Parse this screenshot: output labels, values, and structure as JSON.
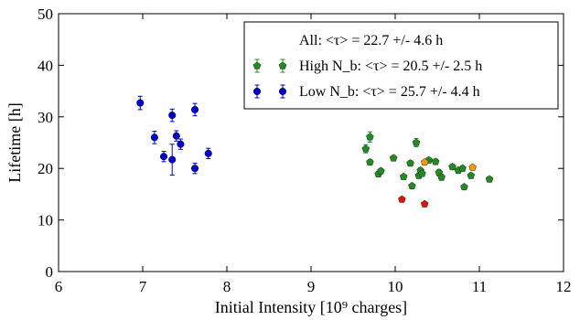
{
  "chart_data": {
    "type": "scatter",
    "xlabel": "Initial Intensity [10⁹ charges]",
    "ylabel": "Lifetime [h]",
    "xlim": [
      6,
      12
    ],
    "ylim": [
      0,
      50
    ],
    "xticks": [
      "6",
      "7",
      "8",
      "9",
      "10",
      "11",
      "12"
    ],
    "yticks": [
      "0",
      "10",
      "20",
      "30",
      "40",
      "50"
    ],
    "grid": false,
    "legend_position": "top-right",
    "legend": [
      {
        "label": "All: <τ> = 22.7 +/- 4.6 h",
        "marker": "none"
      },
      {
        "label": "High N_b: <τ> = 20.5 +/- 2.5 h",
        "color": "#228b22",
        "marker": "pentagon"
      },
      {
        "label": "Low N_b: <τ> = 25.7 +/- 4.4 h",
        "color": "#0000cc",
        "marker": "circle"
      }
    ],
    "series": [
      {
        "name": "High N_b",
        "color": "#228b22",
        "marker": "pentagon",
        "points": [
          {
            "x": 9.65,
            "y": 23.8,
            "err": 0.8
          },
          {
            "x": 9.7,
            "y": 26.1,
            "err": 1.0
          },
          {
            "x": 9.7,
            "y": 21.2,
            "err": 0.5
          },
          {
            "x": 9.8,
            "y": 18.9,
            "err": 0.5
          },
          {
            "x": 9.83,
            "y": 19.5,
            "err": 0.5
          },
          {
            "x": 9.98,
            "y": 22.0,
            "err": 0.5
          },
          {
            "x": 10.1,
            "y": 18.4,
            "err": 0.4
          },
          {
            "x": 10.18,
            "y": 21.0,
            "err": 0.5
          },
          {
            "x": 10.2,
            "y": 16.6,
            "err": 0.4
          },
          {
            "x": 10.25,
            "y": 25.0,
            "err": 0.8
          },
          {
            "x": 10.28,
            "y": 18.6,
            "err": 0.5
          },
          {
            "x": 10.3,
            "y": 19.6,
            "err": 0.5
          },
          {
            "x": 10.32,
            "y": 19.0,
            "err": 0.5
          },
          {
            "x": 10.4,
            "y": 21.6,
            "err": 0.5
          },
          {
            "x": 10.48,
            "y": 21.3,
            "err": 0.5
          },
          {
            "x": 10.52,
            "y": 19.2,
            "err": 0.6
          },
          {
            "x": 10.55,
            "y": 18.3,
            "err": 0.6
          },
          {
            "x": 10.68,
            "y": 20.3,
            "err": 0.5
          },
          {
            "x": 10.75,
            "y": 19.6,
            "err": 0.5
          },
          {
            "x": 10.8,
            "y": 20.0,
            "err": 0.5
          },
          {
            "x": 10.82,
            "y": 16.4,
            "err": 0.4
          },
          {
            "x": 10.9,
            "y": 18.6,
            "err": 0.5
          },
          {
            "x": 11.12,
            "y": 17.9,
            "err": 0.4
          }
        ]
      },
      {
        "name": "Low N_b",
        "color": "#0000cc",
        "marker": "circle",
        "points": [
          {
            "x": 6.97,
            "y": 32.7,
            "err": 1.3
          },
          {
            "x": 7.14,
            "y": 26.0,
            "err": 1.2
          },
          {
            "x": 7.25,
            "y": 22.3,
            "err": 1.0
          },
          {
            "x": 7.35,
            "y": 30.3,
            "err": 1.2
          },
          {
            "x": 7.35,
            "y": 21.7,
            "err": 3.0
          },
          {
            "x": 7.4,
            "y": 26.3,
            "err": 1.0
          },
          {
            "x": 7.45,
            "y": 24.7,
            "err": 1.0
          },
          {
            "x": 7.62,
            "y": 31.4,
            "err": 1.2
          },
          {
            "x": 7.62,
            "y": 20.0,
            "err": 1.0
          },
          {
            "x": 7.78,
            "y": 22.9,
            "err": 1.0
          }
        ]
      },
      {
        "color": "#dd1111",
        "marker": "pentagon",
        "points": [
          {
            "x": 10.08,
            "y": 14.0,
            "err": 0
          },
          {
            "x": 10.35,
            "y": 13.1,
            "err": 0
          }
        ]
      },
      {
        "color": "#ff9900",
        "marker": "pentagon",
        "points": [
          {
            "x": 10.35,
            "y": 21.2,
            "err": 0
          },
          {
            "x": 10.92,
            "y": 20.2,
            "err": 0
          }
        ]
      }
    ]
  }
}
